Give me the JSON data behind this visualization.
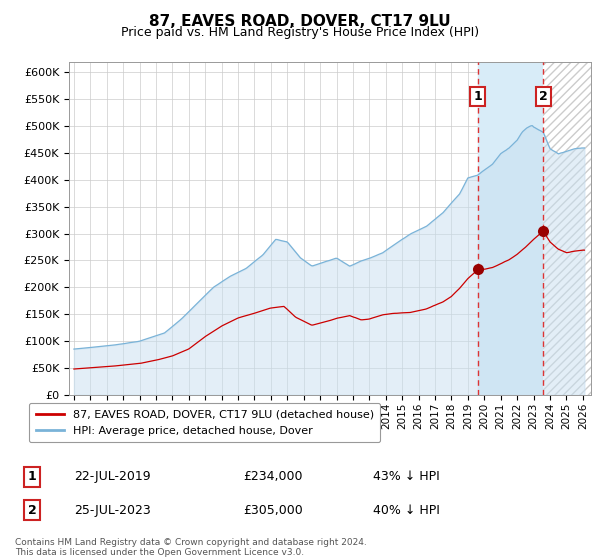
{
  "title": "87, EAVES ROAD, DOVER, CT17 9LU",
  "subtitle": "Price paid vs. HM Land Registry's House Price Index (HPI)",
  "ylim": [
    0,
    620000
  ],
  "yticks": [
    0,
    50000,
    100000,
    150000,
    200000,
    250000,
    300000,
    350000,
    400000,
    450000,
    500000,
    550000,
    600000
  ],
  "ytick_labels": [
    "£0",
    "£50K",
    "£100K",
    "£150K",
    "£200K",
    "£250K",
    "£300K",
    "£350K",
    "£400K",
    "£450K",
    "£500K",
    "£550K",
    "£600K"
  ],
  "hpi_color": "#7ab3d8",
  "hpi_fill_color": "#c8dff0",
  "price_color": "#cc0000",
  "marker_color": "#990000",
  "vline_color": "#dd3333",
  "label_box_edgecolor": "#cc2222",
  "shaded_region_color": "#d8ecf8",
  "hatch_color": "#bbbbbb",
  "legend_label_price": "87, EAVES ROAD, DOVER, CT17 9LU (detached house)",
  "legend_label_hpi": "HPI: Average price, detached house, Dover",
  "transaction1_date": "22-JUL-2019",
  "transaction1_price": "£234,000",
  "transaction1_pct": "43% ↓ HPI",
  "transaction2_date": "25-JUL-2023",
  "transaction2_price": "£305,000",
  "transaction2_pct": "40% ↓ HPI",
  "footer": "Contains HM Land Registry data © Crown copyright and database right 2024.\nThis data is licensed under the Open Government Licence v3.0.",
  "x_start_year": 1995,
  "x_end_year": 2026,
  "sale1_year": 2019.6,
  "sale2_year": 2023.6,
  "sale1_price": 234000,
  "sale2_price": 305000
}
